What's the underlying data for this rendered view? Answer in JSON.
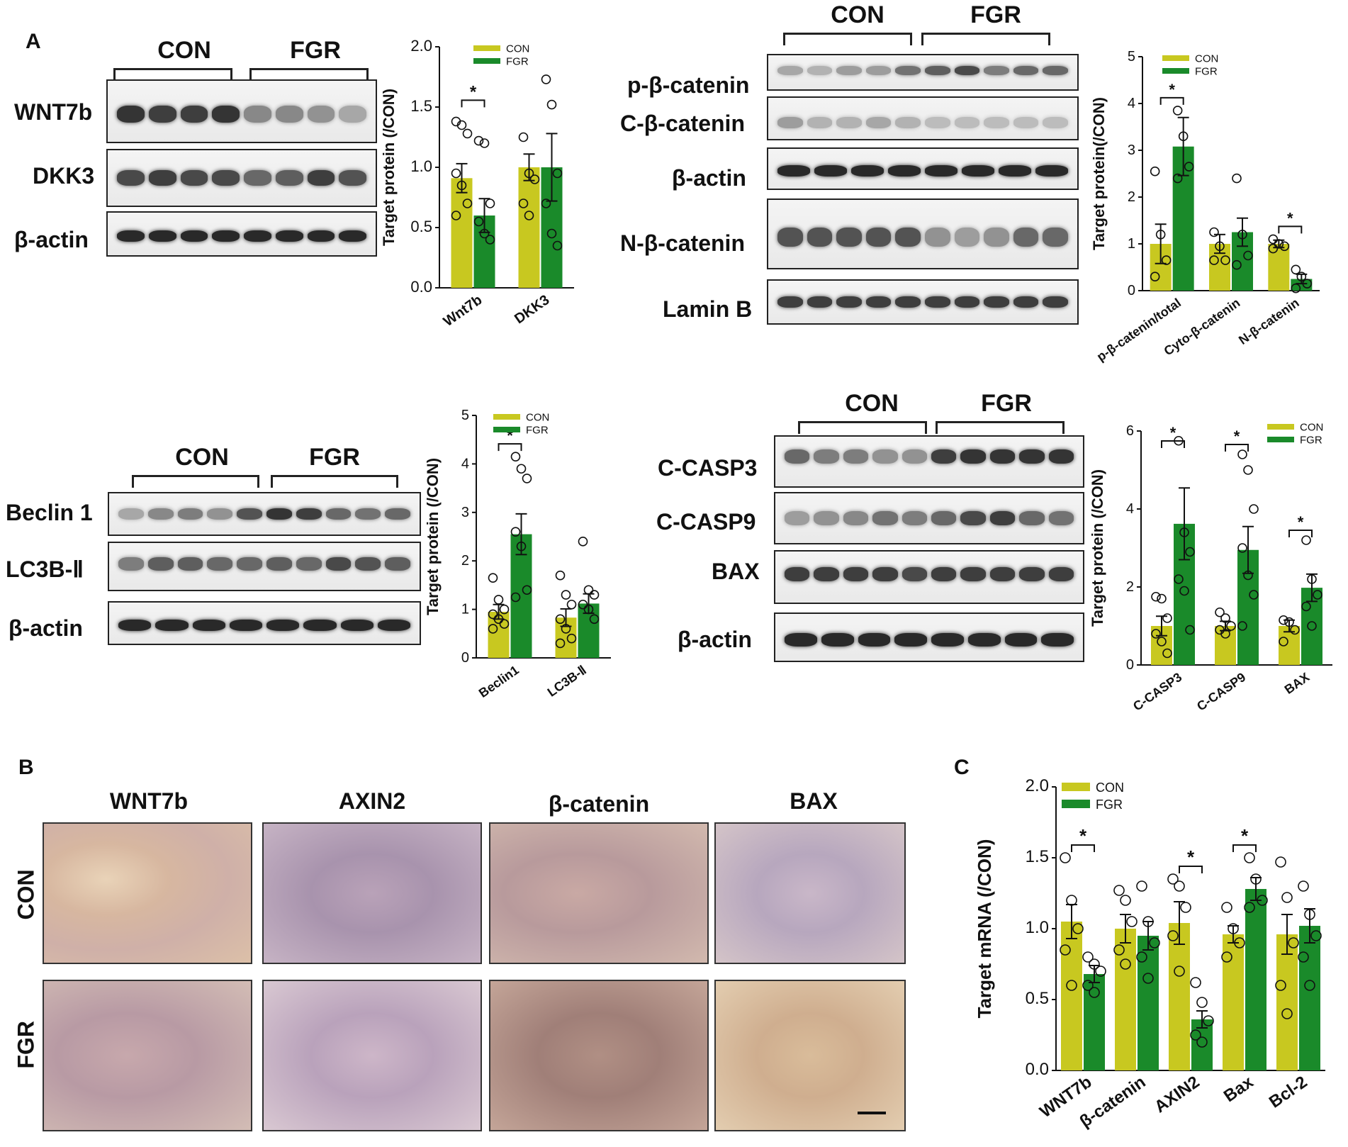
{
  "panels": {
    "A": "A",
    "B": "B",
    "C": "C"
  },
  "groups": {
    "con": "CON",
    "fgr": "FGR"
  },
  "colors": {
    "con": "#c8c820",
    "fgr": "#1a8a2a",
    "text": "#111111"
  },
  "blot1": {
    "labels": [
      "WNT7b",
      "DKK3",
      "β-actin"
    ]
  },
  "blot2": {
    "labels": [
      "p-β-catenin",
      "C-β-catenin",
      "β-actin",
      "N-β-catenin",
      "Lamin B"
    ]
  },
  "blot3": {
    "labels": [
      "Beclin 1",
      "LC3B-Ⅱ",
      "β-actin"
    ]
  },
  "blot4": {
    "labels": [
      "C-CASP3",
      "C-CASP9",
      "BAX",
      "β-actin"
    ]
  },
  "ihc": {
    "columns": [
      "WNT7b",
      "AXIN2",
      "β-catenin",
      "BAX"
    ],
    "rows": [
      "CON",
      "FGR"
    ]
  },
  "chart_data": [
    {
      "id": "A1",
      "type": "bar",
      "ylabel": "Target protein (/CON)",
      "ylim": [
        0,
        2.0
      ],
      "yticks": [
        "0.0",
        "0.5",
        "1.0",
        "1.5",
        "2.0"
      ],
      "categories": [
        "Wnt7b",
        "DKK3"
      ],
      "series": [
        {
          "name": "CON",
          "values": [
            0.91,
            1.0
          ],
          "err": [
            0.12,
            0.11
          ],
          "points": [
            [
              1.38,
              1.35,
              1.28,
              0.95,
              0.85,
              0.7,
              0.6
            ],
            [
              1.25,
              0.95,
              0.9,
              0.7,
              0.6
            ]
          ]
        },
        {
          "name": "FGR",
          "values": [
            0.6,
            1.0
          ],
          "err": [
            0.14,
            0.28
          ],
          "points": [
            [
              1.22,
              1.2,
              0.7,
              0.55,
              0.45,
              0.4
            ],
            [
              1.73,
              1.52,
              0.95,
              0.7,
              0.45,
              0.35
            ]
          ]
        }
      ],
      "sig": [
        {
          "cat": 0,
          "label": "*"
        }
      ]
    },
    {
      "id": "A2",
      "type": "bar",
      "ylabel": "Target protein(/CON)",
      "ylim": [
        0,
        5
      ],
      "yticks": [
        "0",
        "1",
        "2",
        "3",
        "4",
        "5"
      ],
      "categories": [
        "p-β-catenin/total",
        "Cyto-β-catenin",
        "N-β-catenin"
      ],
      "series": [
        {
          "name": "CON",
          "values": [
            1.0,
            1.0,
            1.0
          ],
          "err": [
            0.42,
            0.2,
            0.08
          ],
          "points": [
            [
              2.55,
              1.2,
              0.65,
              0.3
            ],
            [
              1.25,
              0.95,
              0.65,
              0.65
            ],
            [
              1.1,
              1.0,
              0.95,
              0.9
            ]
          ]
        },
        {
          "name": "FGR",
          "values": [
            3.08,
            1.25,
            0.25
          ],
          "err": [
            0.62,
            0.3,
            0.1
          ],
          "points": [
            [
              3.85,
              3.3,
              2.65,
              2.4
            ],
            [
              2.4,
              1.2,
              0.75,
              0.55
            ],
            [
              0.45,
              0.3,
              0.15,
              0.05
            ]
          ]
        }
      ],
      "sig": [
        {
          "cat": 0,
          "label": "*"
        },
        {
          "cat": 2,
          "label": "*"
        }
      ]
    },
    {
      "id": "A3",
      "type": "bar",
      "ylabel": "Target protein (/CON)",
      "ylim": [
        0,
        5
      ],
      "yticks": [
        "0",
        "1",
        "2",
        "3",
        "4",
        "5"
      ],
      "categories": [
        "Beclin1",
        "LC3B-Ⅱ"
      ],
      "series": [
        {
          "name": "CON",
          "values": [
            0.95,
            0.83
          ],
          "err": [
            0.15,
            0.18
          ],
          "points": [
            [
              1.65,
              1.2,
              1.0,
              0.9,
              0.8,
              0.7,
              0.6
            ],
            [
              1.7,
              1.3,
              1.1,
              0.8,
              0.6,
              0.4,
              0.3
            ]
          ]
        },
        {
          "name": "FGR",
          "values": [
            2.55,
            1.12
          ],
          "err": [
            0.42,
            0.2
          ],
          "points": [
            [
              4.15,
              3.9,
              3.7,
              2.6,
              2.3,
              1.4,
              1.25
            ],
            [
              2.4,
              1.4,
              1.3,
              1.1,
              1.0,
              0.8
            ]
          ]
        }
      ],
      "sig": [
        {
          "cat": 0,
          "label": "*"
        }
      ]
    },
    {
      "id": "A4",
      "type": "bar",
      "ylabel": "Target protein (/CON)",
      "ylim": [
        0,
        6
      ],
      "yticks": [
        "0",
        "2",
        "4",
        "6"
      ],
      "categories": [
        "C-CASP3",
        "C-CASP9",
        "BAX"
      ],
      "series": [
        {
          "name": "CON",
          "values": [
            1.0,
            1.0,
            1.0
          ],
          "err": [
            0.25,
            0.12,
            0.15
          ],
          "points": [
            [
              1.75,
              1.7,
              1.2,
              0.8,
              0.6,
              0.3
            ],
            [
              1.35,
              1.2,
              1.0,
              0.9,
              0.8
            ],
            [
              1.15,
              1.1,
              0.9,
              0.6
            ]
          ]
        },
        {
          "name": "FGR",
          "values": [
            3.62,
            2.95,
            1.98
          ],
          "err": [
            0.92,
            0.6,
            0.35
          ],
          "points": [
            [
              5.75,
              3.4,
              2.9,
              2.2,
              1.9,
              0.9
            ],
            [
              5.4,
              5.0,
              4.0,
              3.0,
              2.3,
              1.8,
              1.0
            ],
            [
              3.2,
              2.2,
              1.8,
              1.5,
              1.0
            ]
          ]
        }
      ],
      "sig": [
        {
          "cat": 0,
          "label": "*"
        },
        {
          "cat": 1,
          "label": "*"
        },
        {
          "cat": 2,
          "label": "*"
        }
      ]
    },
    {
      "id": "C",
      "type": "bar",
      "ylabel": "Target mRNA  (/CON)",
      "ylim": [
        0,
        2.0
      ],
      "yticks": [
        "0.0",
        "0.5",
        "1.0",
        "1.5",
        "2.0"
      ],
      "categories": [
        "WNT7b",
        "β-catenin",
        "AXIN2",
        "Bax",
        "Bcl-2"
      ],
      "series": [
        {
          "name": "CON",
          "values": [
            1.05,
            1.0,
            1.04,
            0.96,
            0.96
          ],
          "err": [
            0.12,
            0.1,
            0.15,
            0.06,
            0.14
          ],
          "points": [
            [
              1.5,
              1.2,
              1.0,
              0.85,
              0.6
            ],
            [
              1.27,
              1.2,
              1.05,
              0.85,
              0.75
            ],
            [
              1.35,
              1.3,
              1.15,
              0.95,
              0.7
            ],
            [
              1.15,
              1.0,
              0.9,
              0.8
            ],
            [
              1.47,
              1.22,
              0.9,
              0.6,
              0.4
            ]
          ]
        },
        {
          "name": "FGR",
          "values": [
            0.68,
            0.95,
            0.36,
            1.28,
            1.02
          ],
          "err": [
            0.06,
            0.1,
            0.06,
            0.08,
            0.12
          ],
          "points": [
            [
              0.8,
              0.75,
              0.7,
              0.6,
              0.55
            ],
            [
              1.3,
              1.05,
              0.9,
              0.8,
              0.65
            ],
            [
              0.62,
              0.48,
              0.35,
              0.25,
              0.2
            ],
            [
              1.5,
              1.35,
              1.2,
              1.15
            ],
            [
              1.3,
              1.1,
              0.95,
              0.8,
              0.6
            ]
          ]
        }
      ],
      "sig": [
        {
          "cat": 0,
          "label": "*"
        },
        {
          "cat": 2,
          "label": "*"
        },
        {
          "cat": 3,
          "label": "*"
        }
      ]
    }
  ]
}
